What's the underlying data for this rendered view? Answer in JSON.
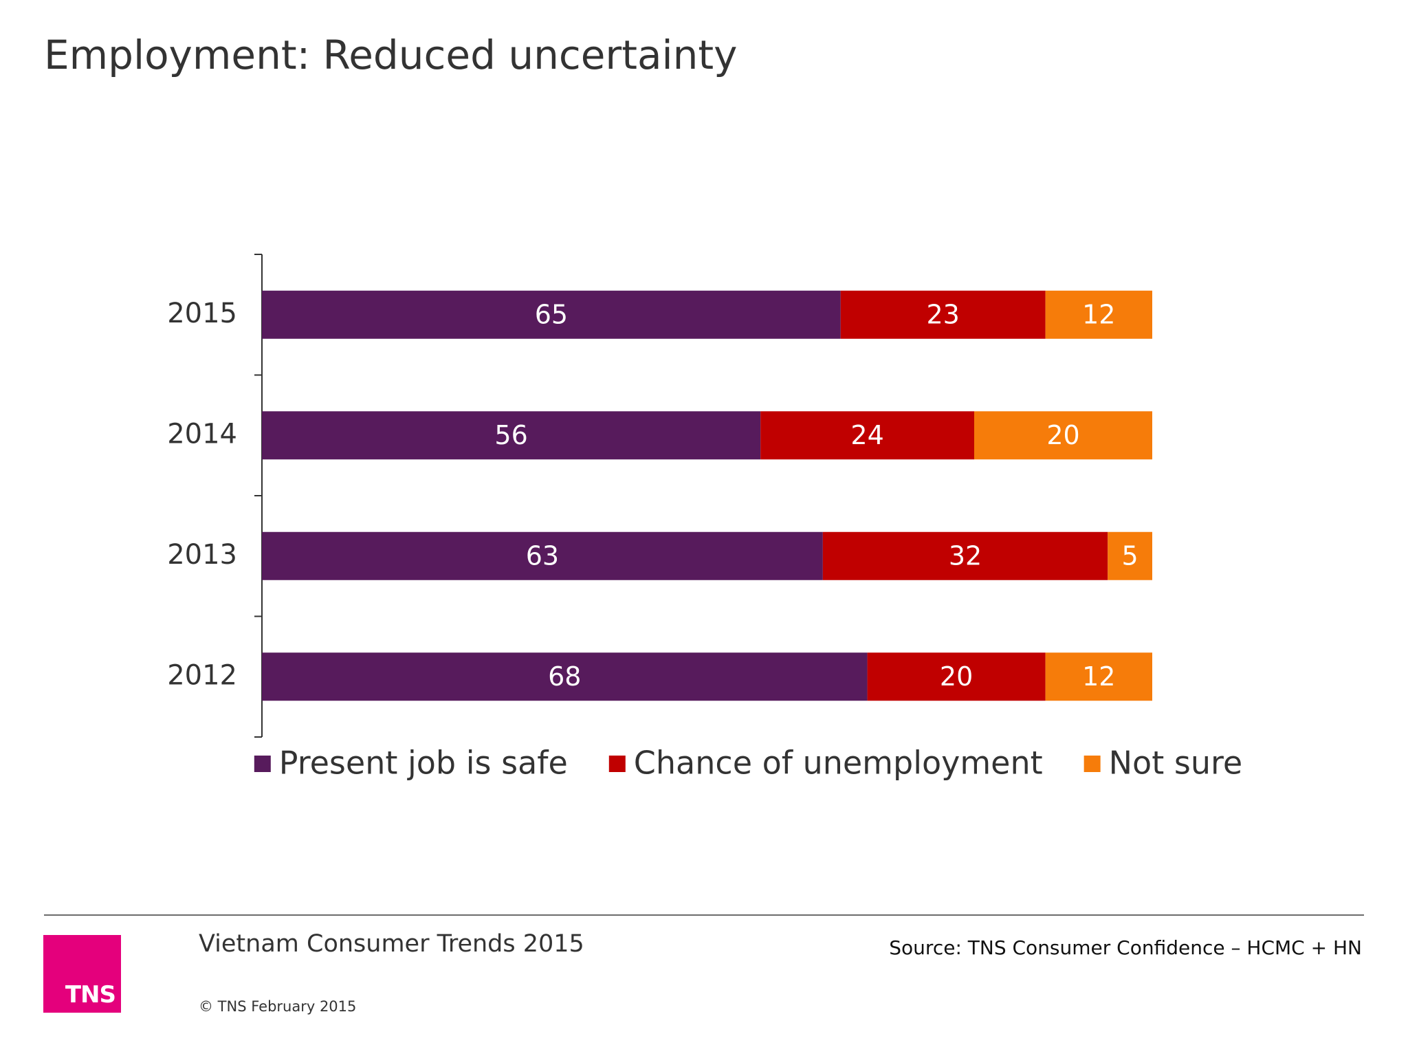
{
  "slide": {
    "title": "Employment: Reduced uncertainty"
  },
  "chart_data": {
    "type": "bar",
    "orientation": "horizontal",
    "stacked": true,
    "categories": [
      "2015",
      "2014",
      "2013",
      "2012"
    ],
    "series": [
      {
        "name": "Present job is safe",
        "color": "#571b5c",
        "values": [
          65,
          56,
          63,
          68
        ]
      },
      {
        "name": "Chance of unemployment",
        "color": "#c00000",
        "values": [
          23,
          24,
          32,
          20
        ]
      },
      {
        "name": "Not sure",
        "color": "#f67c0a",
        "values": [
          12,
          20,
          5,
          12
        ]
      }
    ],
    "xlim": [
      0,
      100
    ],
    "data_labels": true,
    "grid": false,
    "legend": {
      "position": "bottom"
    }
  },
  "footer": {
    "report": "Vietnam Consumer Trends 2015",
    "source": "Source: TNS  Consumer Confidence – HCMC + HN",
    "copyright": "© TNS February 2015",
    "logo_text": "TNS",
    "logo_color": "#e4007c"
  }
}
